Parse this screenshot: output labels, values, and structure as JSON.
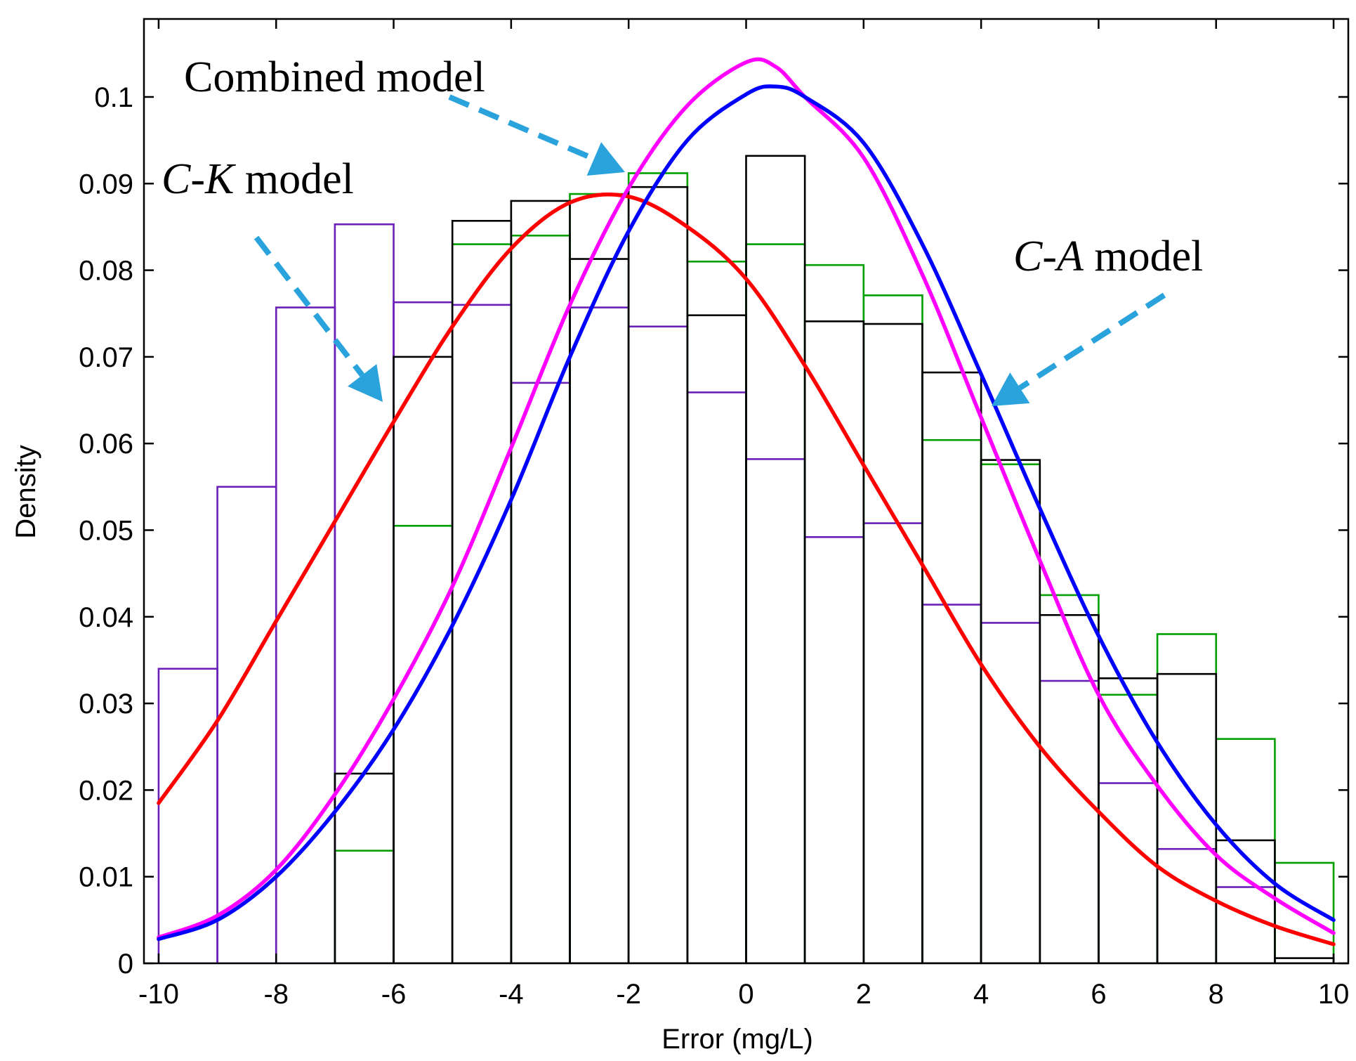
{
  "chart_data": {
    "type": "histogram+line",
    "xlabel": "Error (mg/L)",
    "ylabel": "Density",
    "xlim": [
      -10.25,
      10.25
    ],
    "ylim": [
      0,
      0.109
    ],
    "grid": false,
    "x_ticks": [
      -10,
      -8,
      -6,
      -4,
      -2,
      0,
      2,
      4,
      6,
      8,
      10
    ],
    "x_tick_labels": [
      "-10",
      "-8",
      "-6",
      "-4",
      "-2",
      "0",
      "2",
      "4",
      "6",
      "8",
      "10"
    ],
    "y_ticks": [
      0,
      0.01,
      0.02,
      0.03,
      0.04,
      0.05,
      0.06,
      0.07,
      0.08,
      0.09,
      0.1
    ],
    "y_tick_labels": [
      "0",
      "0.01",
      "0.02",
      "0.03",
      "0.04",
      "0.05",
      "0.06",
      "0.07",
      "0.08",
      "0.09",
      "0.1"
    ],
    "bin_edges": [
      -10,
      -9,
      -8,
      -7,
      -6,
      -5,
      -4,
      -3,
      -2,
      -1,
      0,
      1,
      2,
      3,
      4,
      5,
      6,
      7,
      8,
      9,
      10
    ],
    "histograms": [
      {
        "color": "#6a1fb8",
        "values": [
          0.034,
          0.055,
          0.0757,
          0.0853,
          0.0763,
          0.076,
          0.067,
          0.0757,
          0.0735,
          0.0659,
          0.0582,
          0.0492,
          0.0508,
          0.0414,
          0.0393,
          0.0326,
          0.0208,
          0.0132,
          0.0088,
          0.0
        ]
      },
      {
        "color": "#00a000",
        "values": [
          0.0,
          0.0,
          0.0,
          0.013,
          0.0505,
          0.083,
          0.084,
          0.0888,
          0.0912,
          0.081,
          0.083,
          0.0806,
          0.0771,
          0.0604,
          0.0576,
          0.0425,
          0.031,
          0.038,
          0.0259,
          0.0116
        ]
      },
      {
        "color": "#000000",
        "values": [
          0.0,
          0.0,
          0.0,
          0.0219,
          0.07,
          0.0857,
          0.088,
          0.0813,
          0.0896,
          0.0748,
          0.0932,
          0.0741,
          0.0738,
          0.0682,
          0.0581,
          0.0402,
          0.0329,
          0.0334,
          0.0142,
          0.0006
        ]
      }
    ],
    "series": [
      {
        "color": "#ff0000",
        "x": [
          -10,
          -9,
          -8,
          -7,
          -6,
          -5,
          -4,
          -3,
          -2,
          -1,
          0,
          1,
          2,
          3,
          4,
          5,
          6,
          7,
          8,
          9,
          10
        ],
        "values": [
          0.0185,
          0.028,
          0.0395,
          0.051,
          0.0625,
          0.0735,
          0.0825,
          0.0878,
          0.0885,
          0.085,
          0.079,
          0.069,
          0.0575,
          0.046,
          0.0345,
          0.025,
          0.0175,
          0.0112,
          0.0072,
          0.0043,
          0.0022
        ]
      },
      {
        "color": "#ff00ff",
        "x": [
          -10,
          -9,
          -8,
          -7,
          -6,
          -5,
          -4,
          -3,
          -2,
          -1,
          0,
          0.5,
          1,
          2,
          3,
          4,
          5,
          6,
          7,
          8,
          9,
          10
        ],
        "values": [
          0.003,
          0.0055,
          0.0108,
          0.0195,
          0.0305,
          0.0435,
          0.0595,
          0.076,
          0.0895,
          0.099,
          0.104,
          0.1035,
          0.1,
          0.093,
          0.0795,
          0.063,
          0.0465,
          0.031,
          0.0205,
          0.0125,
          0.0075,
          0.0035
        ]
      },
      {
        "color": "#0000ff",
        "x": [
          -10,
          -9,
          -8,
          -7,
          -6,
          -5,
          -4,
          -3,
          -2,
          -1,
          0,
          0.5,
          1,
          2,
          3,
          4,
          5,
          6,
          7,
          8,
          9,
          10
        ],
        "values": [
          0.0028,
          0.005,
          0.01,
          0.0175,
          0.027,
          0.039,
          0.0535,
          0.07,
          0.0845,
          0.095,
          0.1003,
          0.1012,
          0.1,
          0.0947,
          0.083,
          0.068,
          0.0525,
          0.0378,
          0.0255,
          0.016,
          0.0092,
          0.005
        ]
      }
    ],
    "annotations": [
      {
        "text": "Combined model"
      },
      {
        "text_italic": "C-K",
        "text_rest": " model"
      },
      {
        "text_italic": "C-A",
        "text_rest": " model"
      }
    ],
    "arrow_color": "#2aa3dd"
  }
}
